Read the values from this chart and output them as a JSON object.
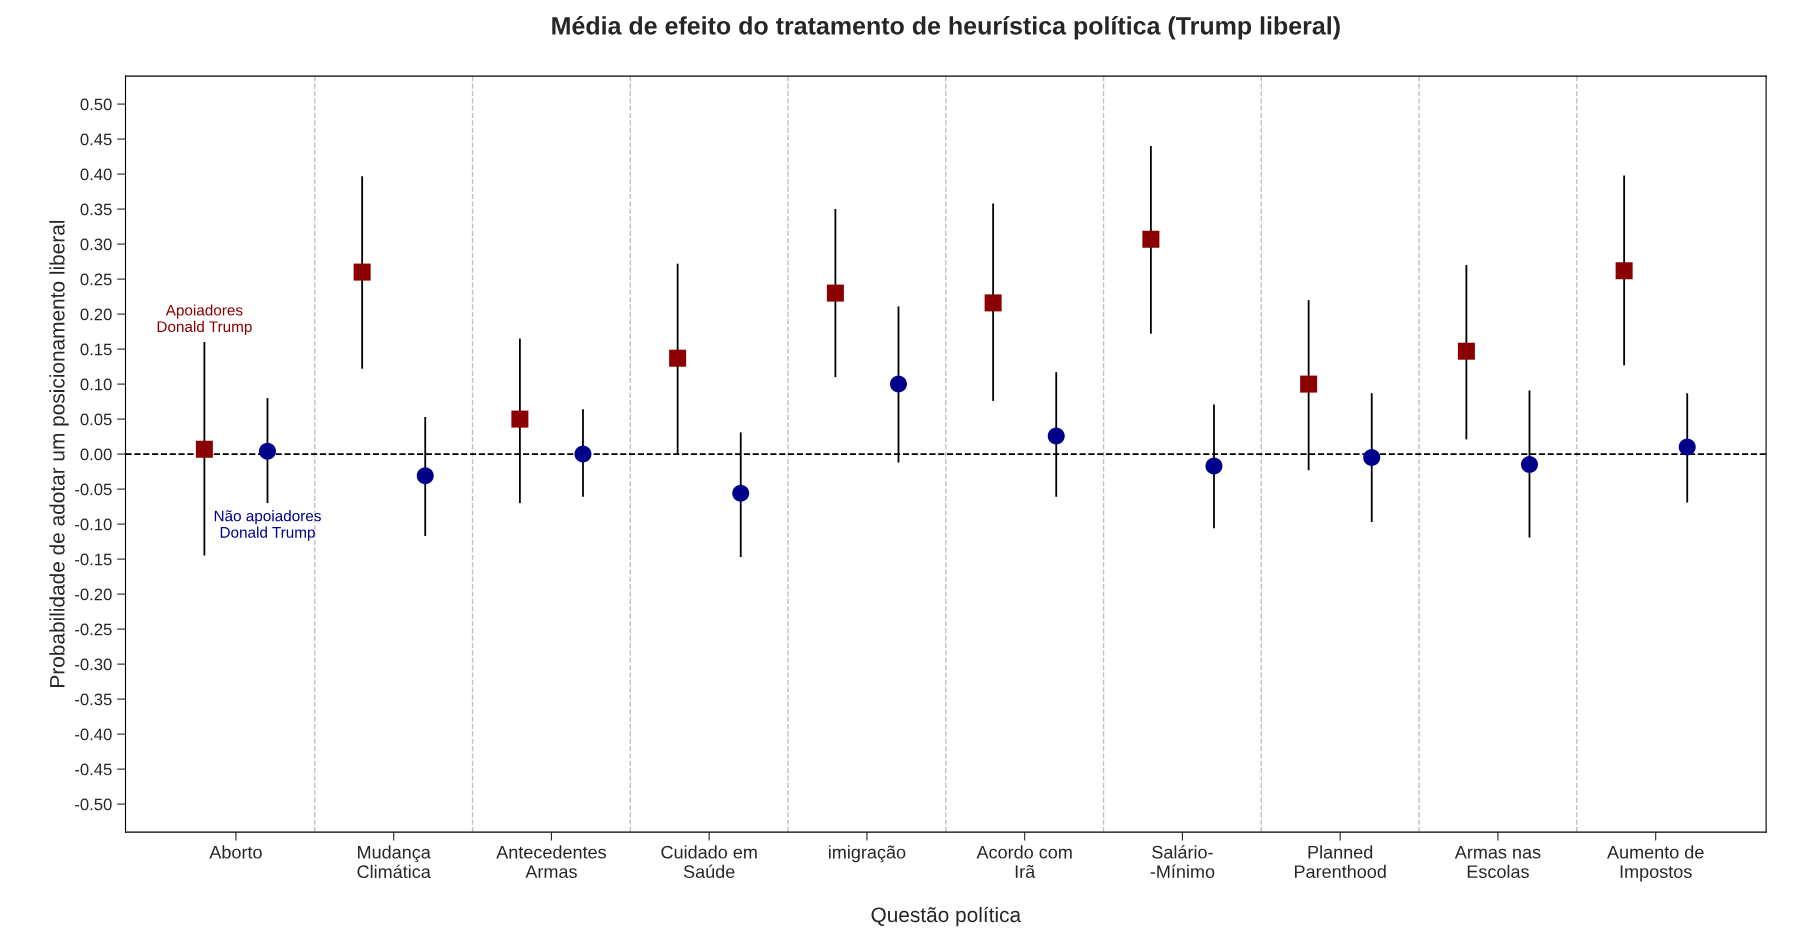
{
  "chart_data": {
    "type": "scatter",
    "title": "Média de efeito do tratamento de heurística política (Trump liberal)",
    "xlabel": "Questão política",
    "ylabel": "Probabilidade de adotar um posicionamento liberal",
    "categories": [
      "Aborto",
      "Mudança\nClimática",
      "Antecedentes\nArmas",
      "Cuidado em\nSaúde",
      "imigração",
      "Acordo com\nIrã",
      "Salário-\n-Mínimo",
      "Planned\nParenthood",
      "Armas nas\nEscolas",
      "Aumento de\nImpostos"
    ],
    "series": [
      {
        "name": "Apoiadores\nDonald Trump",
        "color": "#8b0000",
        "marker": "square",
        "values": [
          0.007,
          0.26,
          0.05,
          0.137,
          0.23,
          0.216,
          0.307,
          0.1,
          0.147,
          0.262
        ],
        "errors": [
          [
            -0.145,
            0.16
          ],
          [
            0.122,
            0.397
          ],
          [
            -0.07,
            0.165
          ],
          [
            0.0,
            0.272
          ],
          [
            0.11,
            0.35
          ],
          [
            0.076,
            0.358
          ],
          [
            0.172,
            0.44
          ],
          [
            -0.023,
            0.22
          ],
          [
            0.021,
            0.27
          ],
          [
            0.127,
            0.398
          ]
        ]
      },
      {
        "name": "Não apoiadores\nDonald Trump",
        "color": "#00008b",
        "marker": "circle",
        "values": [
          0.004,
          -0.031,
          0.0,
          -0.056,
          0.1,
          0.026,
          -0.017,
          -0.005,
          -0.015,
          0.01
        ],
        "errors": [
          [
            -0.07,
            0.08
          ],
          [
            -0.117,
            0.053
          ],
          [
            -0.061,
            0.064
          ],
          [
            -0.147,
            0.031
          ],
          [
            -0.012,
            0.211
          ],
          [
            -0.061,
            0.117
          ],
          [
            -0.106,
            0.071
          ],
          [
            -0.097,
            0.087
          ],
          [
            -0.119,
            0.091
          ],
          [
            -0.069,
            0.087
          ]
        ]
      }
    ],
    "ylim": [
      -0.54,
      0.54
    ],
    "yticks": [
      {
        "value": 0.5,
        "label": "0.50"
      },
      {
        "value": 0.45,
        "label": "0.45"
      },
      {
        "value": 0.4,
        "label": "0.40"
      },
      {
        "value": 0.35,
        "label": "0.35"
      },
      {
        "value": 0.3,
        "label": "0.30"
      },
      {
        "value": 0.25,
        "label": "0.25"
      },
      {
        "value": 0.2,
        "label": "0.20"
      },
      {
        "value": 0.15,
        "label": "0.15"
      },
      {
        "value": 0.1,
        "label": "0.10"
      },
      {
        "value": 0.05,
        "label": "0.05"
      },
      {
        "value": 0,
        "label": "0.00"
      },
      {
        "value": -0.05,
        "label": "-0.05"
      },
      {
        "value": -0.1,
        "label": "-0.10"
      },
      {
        "value": -0.15,
        "label": "-0.15"
      },
      {
        "value": -0.2,
        "label": "-0.20"
      },
      {
        "value": -0.25,
        "label": "-0.25"
      },
      {
        "value": -0.3,
        "label": "-0.30"
      },
      {
        "value": -0.35,
        "label": "-0.35"
      },
      {
        "value": -0.4,
        "label": "-0.40"
      },
      {
        "value": -0.45,
        "label": "-0.45"
      },
      {
        "value": -0.5,
        "label": "-0.50"
      }
    ],
    "ref_lines": [
      {
        "axis": "y",
        "value": 0,
        "color": "#000000",
        "line_style": "dashed"
      }
    ],
    "grid": "x",
    "legend": false
  }
}
